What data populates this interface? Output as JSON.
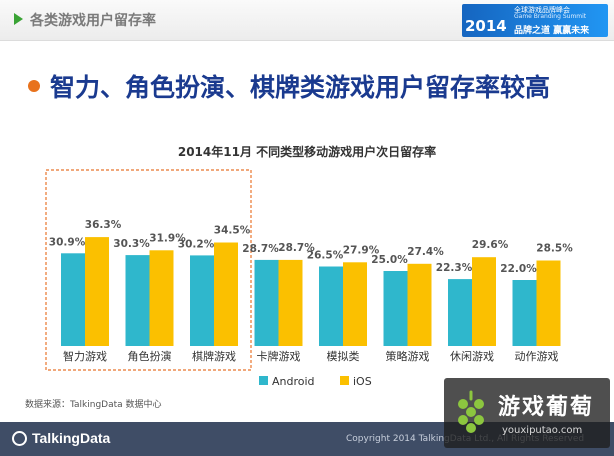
{
  "header": {
    "title": "各类游戏用户留存率"
  },
  "banner": {
    "line1": "全球游戏品牌峰会",
    "line2": "Game Branding Summit",
    "year": "2014",
    "slogan": "品牌之道 赢赢未来"
  },
  "heading": "智力、角色扮演、棋牌类游戏用户留存率较高",
  "colors": {
    "android": "#2fb7cc",
    "ios": "#fbc000",
    "highlight_box": "#e8742c",
    "heading": "#1a3a8f",
    "bullet": "#e8721d",
    "footer": "#3f4d66"
  },
  "chart_data": {
    "type": "bar",
    "title": "2014年11月 不同类型移动游戏用户次日留存率",
    "categories": [
      "智力游戏",
      "角色扮演",
      "棋牌游戏",
      "卡牌游戏",
      "模拟类",
      "策略游戏",
      "休闲游戏",
      "动作游戏"
    ],
    "series": [
      {
        "name": "Android",
        "values": [
          30.9,
          30.3,
          30.2,
          28.7,
          26.5,
          25.0,
          22.3,
          22.0
        ],
        "labels": [
          "30.9%",
          "30.3%",
          "30.2%",
          "28.7%",
          "26.5%",
          "25.0%",
          "22.3%",
          "22.0%"
        ]
      },
      {
        "name": "iOS",
        "values": [
          36.3,
          31.9,
          34.5,
          28.7,
          27.9,
          27.4,
          29.6,
          28.5
        ],
        "labels": [
          "36.3%",
          "31.9%",
          "34.5%",
          "28.7%",
          "27.9%",
          "27.4%",
          "29.6%",
          "28.5%"
        ]
      }
    ],
    "ylim": [
      0,
      40
    ],
    "grid": false,
    "legend": "bottom",
    "highlighted_categories": [
      "智力游戏",
      "角色扮演",
      "棋牌游戏"
    ]
  },
  "source_note": "数据来源：TalkingData 数据中心",
  "footer": {
    "brand": "TalkingData",
    "copyright": "Copyright 2014 TalkingData Ltd., All Rights Reserved"
  },
  "watermark": {
    "name": "游戏葡萄",
    "url": "youxiputao.com"
  }
}
